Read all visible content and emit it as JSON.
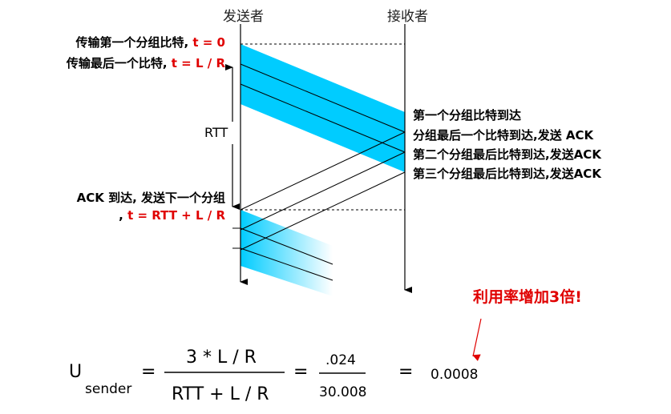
{
  "headers": {
    "sender": "发送者",
    "receiver": "接收者"
  },
  "left_labels": {
    "first_bit_text": "传输第一个分组比特, ",
    "first_bit_time": "t = 0",
    "last_bit_text": "传输最后一个比特, ",
    "last_bit_time": "t = L / R",
    "rtt": "RTT",
    "ack_line1": "ACK 到达, 发送下一个分组",
    "ack_line2_prefix": ", ",
    "ack_line2_time": "t = RTT + L / R"
  },
  "right_labels": {
    "first_arrive": "第一个分组比特到达",
    "last_arrive_ack": "分组最后一个比特到达,发送 ACK",
    "second_ack": "第二个分组最后比特到达,发送ACK",
    "third_ack": "第三个分组最后比特到达,发送ACK"
  },
  "note": "利用率增加3倍!",
  "formula": {
    "u": "U",
    "sub": "sender",
    "eq": "=",
    "num1": "3 * L / R",
    "den1": "RTT + L / R",
    "num2": ".024",
    "den2": "30.008",
    "result": "0.0008"
  },
  "colors": {
    "band": "#00ccff",
    "accent": "#e00000",
    "line": "#000000"
  }
}
